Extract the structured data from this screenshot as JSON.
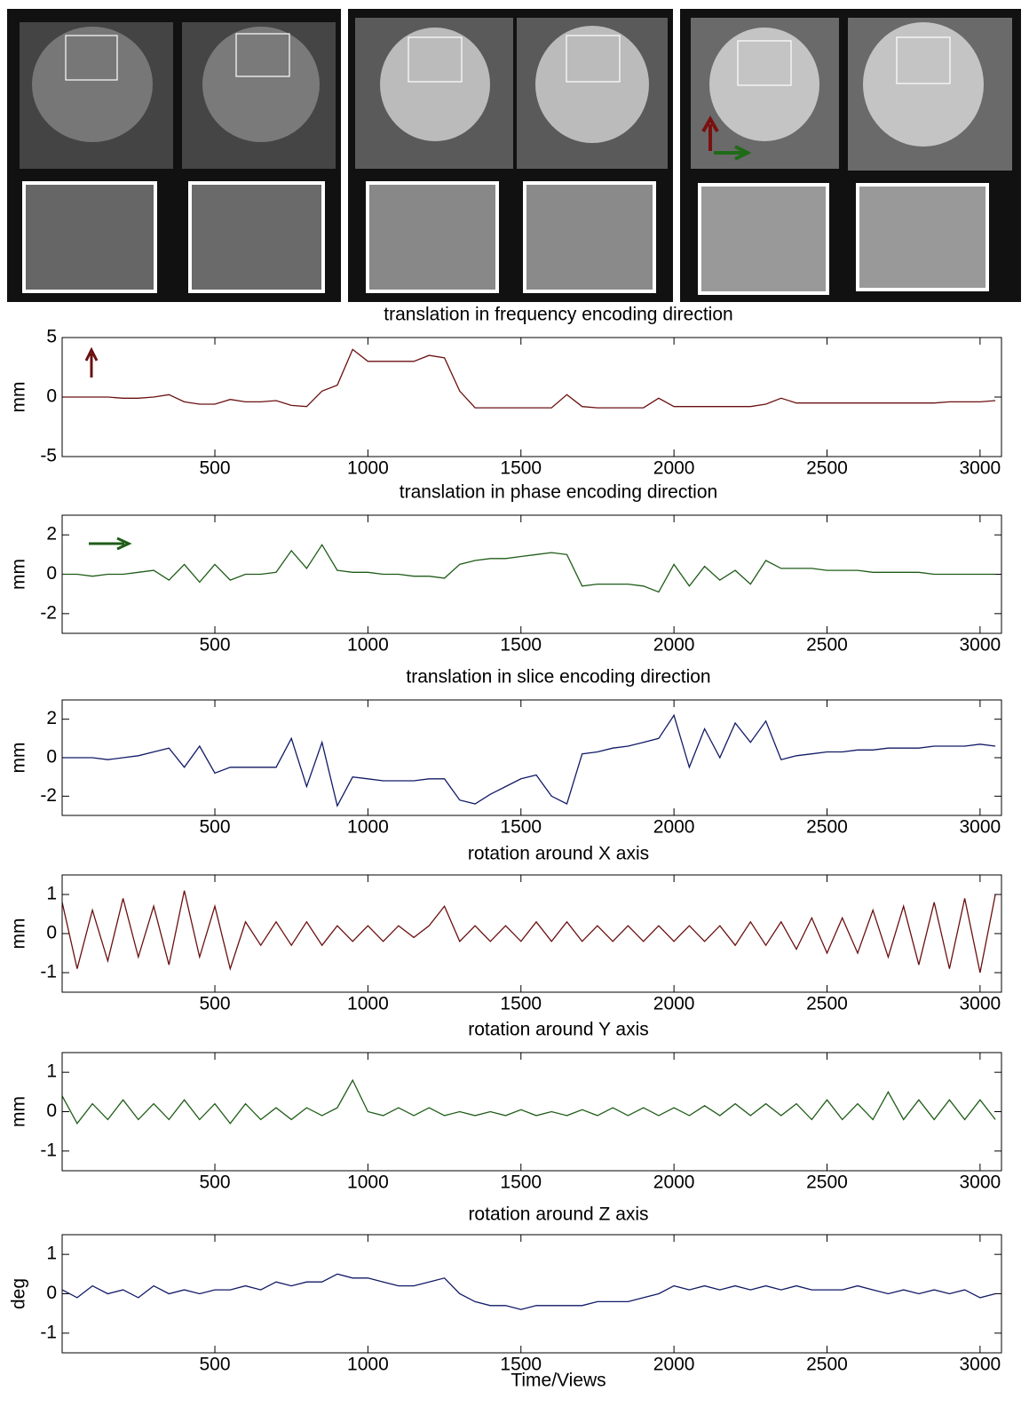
{
  "chart_data": [
    {
      "type": "line",
      "title": "translation in frequency encoding direction",
      "ylabel": "mm",
      "color": "#6b1010",
      "x": [
        1,
        50,
        100,
        150,
        200,
        250,
        300,
        350,
        400,
        450,
        500,
        550,
        600,
        650,
        700,
        750,
        800,
        850,
        900,
        950,
        1000,
        1050,
        1100,
        1150,
        1200,
        1250,
        1300,
        1350,
        1400,
        1450,
        1500,
        1550,
        1600,
        1650,
        1700,
        1750,
        1800,
        1850,
        1900,
        1950,
        2000,
        2050,
        2100,
        2150,
        2200,
        2250,
        2300,
        2350,
        2400,
        2450,
        2500,
        2550,
        2600,
        2650,
        2700,
        2750,
        2800,
        2850,
        2900,
        2950,
        3000,
        3050
      ],
      "values": [
        0,
        0,
        0,
        0,
        -0.1,
        -0.1,
        0,
        0.2,
        -0.4,
        -0.6,
        -0.6,
        -0.2,
        -0.4,
        -0.4,
        -0.3,
        -0.7,
        -0.8,
        0.5,
        1,
        4,
        3,
        3,
        3,
        3,
        3.5,
        3.3,
        0.5,
        -0.9,
        -0.9,
        -0.9,
        -0.9,
        -0.9,
        -0.9,
        0.2,
        -0.8,
        -0.9,
        -0.9,
        -0.9,
        -0.9,
        -0.1,
        -0.8,
        -0.8,
        -0.8,
        -0.8,
        -0.8,
        -0.8,
        -0.6,
        -0.1,
        -0.5,
        -0.5,
        -0.5,
        -0.5,
        -0.5,
        -0.5,
        -0.5,
        -0.5,
        -0.5,
        -0.5,
        -0.4,
        -0.4,
        -0.4,
        -0.3
      ],
      "xlim": [
        1,
        3070
      ],
      "xticks": [
        500,
        1000,
        1500,
        2000,
        2500,
        3000
      ],
      "ylim": [
        -5,
        5
      ],
      "yticks": [
        -5,
        0,
        5
      ]
    },
    {
      "type": "line",
      "title": "translation in phase encoding direction",
      "ylabel": "mm",
      "color": "#1f5c18",
      "x": [
        1,
        50,
        100,
        150,
        200,
        250,
        300,
        350,
        400,
        450,
        500,
        550,
        600,
        650,
        700,
        750,
        800,
        850,
        900,
        950,
        1000,
        1050,
        1100,
        1150,
        1200,
        1250,
        1300,
        1350,
        1400,
        1450,
        1500,
        1550,
        1600,
        1650,
        1700,
        1750,
        1800,
        1850,
        1900,
        1950,
        2000,
        2050,
        2100,
        2150,
        2200,
        2250,
        2300,
        2350,
        2400,
        2450,
        2500,
        2550,
        2600,
        2650,
        2700,
        2750,
        2800,
        2850,
        2900,
        2950,
        3000,
        3050
      ],
      "values": [
        0,
        0,
        -0.1,
        0,
        0,
        0.1,
        0.2,
        -0.3,
        0.5,
        -0.4,
        0.5,
        -0.3,
        0,
        0,
        0.1,
        1.2,
        0.3,
        1.5,
        0.2,
        0.1,
        0.1,
        0,
        0,
        -0.1,
        -0.1,
        -0.2,
        0.5,
        0.7,
        0.8,
        0.8,
        0.9,
        1,
        1.1,
        1,
        -0.6,
        -0.5,
        -0.5,
        -0.5,
        -0.6,
        -0.9,
        0.5,
        -0.6,
        0.4,
        -0.3,
        0.2,
        -0.5,
        0.7,
        0.3,
        0.3,
        0.3,
        0.2,
        0.2,
        0.2,
        0.1,
        0.1,
        0.1,
        0.1,
        0,
        0,
        0,
        0,
        0
      ],
      "xlim": [
        1,
        3070
      ],
      "xticks": [
        500,
        1000,
        1500,
        2000,
        2500,
        3000
      ],
      "ylim": [
        -3,
        3
      ],
      "yticks": [
        -2,
        0,
        2
      ]
    },
    {
      "type": "line",
      "title": "translation in slice encoding direction",
      "ylabel": "mm",
      "color": "#111a66",
      "x": [
        1,
        50,
        100,
        150,
        200,
        250,
        300,
        350,
        400,
        450,
        500,
        550,
        600,
        650,
        700,
        750,
        800,
        850,
        900,
        950,
        1000,
        1050,
        1100,
        1150,
        1200,
        1250,
        1300,
        1350,
        1400,
        1450,
        1500,
        1550,
        1600,
        1650,
        1700,
        1750,
        1800,
        1850,
        1900,
        1950,
        2000,
        2050,
        2100,
        2150,
        2200,
        2250,
        2300,
        2350,
        2400,
        2450,
        2500,
        2550,
        2600,
        2650,
        2700,
        2750,
        2800,
        2850,
        2900,
        2950,
        3000,
        3050
      ],
      "values": [
        0,
        0,
        0,
        -0.1,
        0,
        0.1,
        0.3,
        0.5,
        -0.5,
        0.6,
        -0.8,
        -0.5,
        -0.5,
        -0.5,
        -0.5,
        1,
        -1.5,
        0.8,
        -2.5,
        -1,
        -1.1,
        -1.2,
        -1.2,
        -1.2,
        -1.1,
        -1.1,
        -2.2,
        -2.4,
        -1.9,
        -1.5,
        -1.1,
        -0.9,
        -2,
        -2.4,
        0.2,
        0.3,
        0.5,
        0.6,
        0.8,
        1,
        2.2,
        -0.5,
        1.5,
        0,
        1.8,
        0.8,
        1.9,
        -0.1,
        0.1,
        0.2,
        0.3,
        0.3,
        0.4,
        0.4,
        0.5,
        0.5,
        0.5,
        0.6,
        0.6,
        0.6,
        0.7,
        0.6
      ],
      "xlim": [
        1,
        3070
      ],
      "xticks": [
        500,
        1000,
        1500,
        2000,
        2500,
        3000
      ],
      "ylim": [
        -3,
        3
      ],
      "yticks": [
        -2,
        0,
        2
      ]
    },
    {
      "type": "line",
      "title": "rotation around X axis",
      "ylabel": "mm",
      "color": "#6b1010",
      "x": [
        1,
        50,
        100,
        150,
        200,
        250,
        300,
        350,
        400,
        450,
        500,
        550,
        600,
        650,
        700,
        750,
        800,
        850,
        900,
        950,
        1000,
        1050,
        1100,
        1150,
        1200,
        1250,
        1300,
        1350,
        1400,
        1450,
        1500,
        1550,
        1600,
        1650,
        1700,
        1750,
        1800,
        1850,
        1900,
        1950,
        2000,
        2050,
        2100,
        2150,
        2200,
        2250,
        2300,
        2350,
        2400,
        2450,
        2500,
        2550,
        2600,
        2650,
        2700,
        2750,
        2800,
        2850,
        2900,
        2950,
        3000,
        3050
      ],
      "values": [
        0.8,
        -0.9,
        0.6,
        -0.7,
        0.9,
        -0.6,
        0.7,
        -0.8,
        1.1,
        -0.6,
        0.7,
        -0.9,
        0.3,
        -0.3,
        0.3,
        -0.3,
        0.3,
        -0.3,
        0.2,
        -0.2,
        0.2,
        -0.2,
        0.2,
        -0.1,
        0.2,
        0.7,
        -0.2,
        0.2,
        -0.2,
        0.2,
        -0.2,
        0.3,
        -0.2,
        0.3,
        -0.2,
        0.2,
        -0.2,
        0.2,
        -0.2,
        0.2,
        -0.2,
        0.2,
        -0.2,
        0.2,
        -0.3,
        0.3,
        -0.3,
        0.3,
        -0.4,
        0.4,
        -0.5,
        0.4,
        -0.5,
        0.6,
        -0.6,
        0.7,
        -0.8,
        0.8,
        -0.9,
        0.9,
        -1,
        1
      ],
      "xlim": [
        1,
        3070
      ],
      "xticks": [
        500,
        1000,
        1500,
        2000,
        2500,
        3000
      ],
      "ylim": [
        -1.5,
        1.5
      ],
      "yticks": [
        -1,
        0,
        1
      ]
    },
    {
      "type": "line",
      "title": "rotation around Y axis",
      "ylabel": "mm",
      "color": "#1f5c18",
      "x": [
        1,
        50,
        100,
        150,
        200,
        250,
        300,
        350,
        400,
        450,
        500,
        550,
        600,
        650,
        700,
        750,
        800,
        850,
        900,
        950,
        1000,
        1050,
        1100,
        1150,
        1200,
        1250,
        1300,
        1350,
        1400,
        1450,
        1500,
        1550,
        1600,
        1650,
        1700,
        1750,
        1800,
        1850,
        1900,
        1950,
        2000,
        2050,
        2100,
        2150,
        2200,
        2250,
        2300,
        2350,
        2400,
        2450,
        2500,
        2550,
        2600,
        2650,
        2700,
        2750,
        2800,
        2850,
        2900,
        2950,
        3000,
        3050
      ],
      "values": [
        0.4,
        -0.3,
        0.2,
        -0.2,
        0.3,
        -0.2,
        0.2,
        -0.2,
        0.3,
        -0.2,
        0.2,
        -0.3,
        0.2,
        -0.2,
        0.1,
        -0.2,
        0.1,
        -0.1,
        0.1,
        0.8,
        0,
        -0.1,
        0.1,
        -0.1,
        0.1,
        -0.1,
        0,
        -0.1,
        0,
        -0.1,
        0.05,
        -0.1,
        0,
        -0.1,
        0.05,
        -0.1,
        0.1,
        -0.1,
        0.1,
        -0.1,
        0.1,
        -0.1,
        0.15,
        -0.1,
        0.2,
        -0.1,
        0.2,
        -0.1,
        0.2,
        -0.2,
        0.3,
        -0.2,
        0.2,
        -0.2,
        0.5,
        -0.2,
        0.3,
        -0.2,
        0.3,
        -0.2,
        0.3,
        -0.2
      ],
      "xlim": [
        1,
        3070
      ],
      "xticks": [
        500,
        1000,
        1500,
        2000,
        2500,
        3000
      ],
      "ylim": [
        -1.5,
        1.5
      ],
      "yticks": [
        -1,
        0,
        1
      ]
    },
    {
      "type": "line",
      "title": "rotation around Z axis",
      "ylabel": "deg",
      "xlabel": "Time/Views",
      "color": "#111a66",
      "x": [
        1,
        50,
        100,
        150,
        200,
        250,
        300,
        350,
        400,
        450,
        500,
        550,
        600,
        650,
        700,
        750,
        800,
        850,
        900,
        950,
        1000,
        1050,
        1100,
        1150,
        1200,
        1250,
        1300,
        1350,
        1400,
        1450,
        1500,
        1550,
        1600,
        1650,
        1700,
        1750,
        1800,
        1850,
        1900,
        1950,
        2000,
        2050,
        2100,
        2150,
        2200,
        2250,
        2300,
        2350,
        2400,
        2450,
        2500,
        2550,
        2600,
        2650,
        2700,
        2750,
        2800,
        2850,
        2900,
        2950,
        3000,
        3050
      ],
      "values": [
        0.1,
        -0.1,
        0.2,
        0,
        0.1,
        -0.1,
        0.2,
        0,
        0.1,
        0,
        0.1,
        0.1,
        0.2,
        0.1,
        0.3,
        0.2,
        0.3,
        0.3,
        0.5,
        0.4,
        0.4,
        0.3,
        0.2,
        0.2,
        0.3,
        0.4,
        0,
        -0.2,
        -0.3,
        -0.3,
        -0.4,
        -0.3,
        -0.3,
        -0.3,
        -0.3,
        -0.2,
        -0.2,
        -0.2,
        -0.1,
        0,
        0.2,
        0.1,
        0.2,
        0.1,
        0.2,
        0.1,
        0.2,
        0.1,
        0.2,
        0.1,
        0.1,
        0.1,
        0.2,
        0.1,
        0,
        0.1,
        0,
        0.1,
        0,
        0.1,
        -0.1,
        0
      ],
      "xlim": [
        1,
        3070
      ],
      "xticks": [
        500,
        1000,
        1500,
        2000,
        2500,
        3000
      ],
      "ylim": [
        -1.5,
        1.5
      ],
      "yticks": [
        -1,
        0,
        1
      ]
    }
  ]
}
